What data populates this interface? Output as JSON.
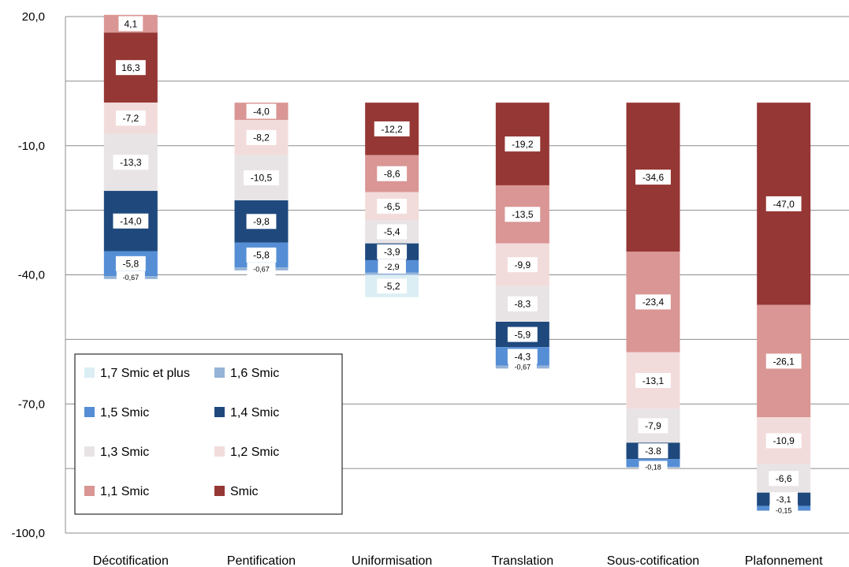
{
  "chart_data": {
    "type": "bar",
    "stacked": true,
    "categories": [
      "Décotification",
      "Pentification",
      "Uniformisation",
      "Translation",
      "Sous-cotification",
      "Plafonnement"
    ],
    "ylim": [
      -100,
      20
    ],
    "yticks": [
      20,
      -10,
      -40,
      -70,
      -100
    ],
    "ytick_labels": [
      "20,0",
      "-10,0",
      "-40,0",
      "-70,0",
      "-100,0"
    ],
    "grid": true,
    "legend_position": "bottom-left",
    "legend": [
      "1,7 Smic et plus",
      "1,6 Smic",
      "1,5 Smic",
      "1,4 Smic",
      "1,3 Smic",
      "1,2 Smic",
      "1,1 Smic",
      "Smic"
    ],
    "series": [
      {
        "name": "Smic",
        "color": "#953735",
        "values": [
          16.3,
          0,
          -12.2,
          -19.2,
          -34.6,
          -47.0
        ],
        "labels": [
          "16,3",
          "",
          "-12,2",
          "-19,2",
          "-34,6",
          "-47,0"
        ]
      },
      {
        "name": "1,1 Smic",
        "color": "#d99694",
        "values": [
          4.1,
          -4.0,
          -8.6,
          -13.5,
          -23.4,
          -26.1
        ],
        "labels": [
          "4,1",
          "-4,0",
          "-8,6",
          "-13,5",
          "-23,4",
          "-26,1"
        ]
      },
      {
        "name": "1,2 Smic",
        "color": "#f2dcdb",
        "values": [
          -7.2,
          -8.2,
          -6.5,
          -9.9,
          -13.1,
          -10.9
        ],
        "labels": [
          "-7,2",
          "-8,2",
          "-6,5",
          "-9,9",
          "-13,1",
          "-10,9"
        ]
      },
      {
        "name": "1,3 Smic",
        "color": "#e8e4e6",
        "values": [
          -13.3,
          -10.5,
          -5.4,
          -8.3,
          -7.9,
          -6.6
        ],
        "labels": [
          "-13,3",
          "-10,5",
          "-5,4",
          "-8,3",
          "-7,9",
          "-6,6"
        ]
      },
      {
        "name": "1,4 Smic",
        "color": "#1f497d",
        "values": [
          -14.0,
          -9.8,
          -3.9,
          -5.9,
          -3.8,
          -3.1
        ],
        "labels": [
          "-14,0",
          "-9,8",
          "-3,9",
          "-5,9",
          "-3.8",
          "-3,1"
        ]
      },
      {
        "name": "1,5 Smic",
        "color": "#558ed5",
        "values": [
          -5.8,
          -5.8,
          -2.9,
          -4.3,
          -1.8,
          -1.0
        ],
        "labels": [
          "-5,8",
          "-5,8",
          "-2,9",
          "-4,3",
          "",
          ""
        ]
      },
      {
        "name": "1,6 Smic",
        "color": "#95b3d7",
        "values": [
          -0.67,
          -0.67,
          -0.5,
          -0.67,
          -0.18,
          -0.15
        ],
        "labels": [
          "-0,67",
          "-0,67",
          "",
          "-0,67",
          "-0,18",
          "-0,15"
        ]
      },
      {
        "name": "1,7 Smic et plus",
        "color": "#dbeef4",
        "values": [
          0,
          0,
          -5.2,
          0,
          0,
          0
        ],
        "labels": [
          "",
          "",
          "-5,2",
          "",
          "",
          ""
        ]
      }
    ]
  }
}
